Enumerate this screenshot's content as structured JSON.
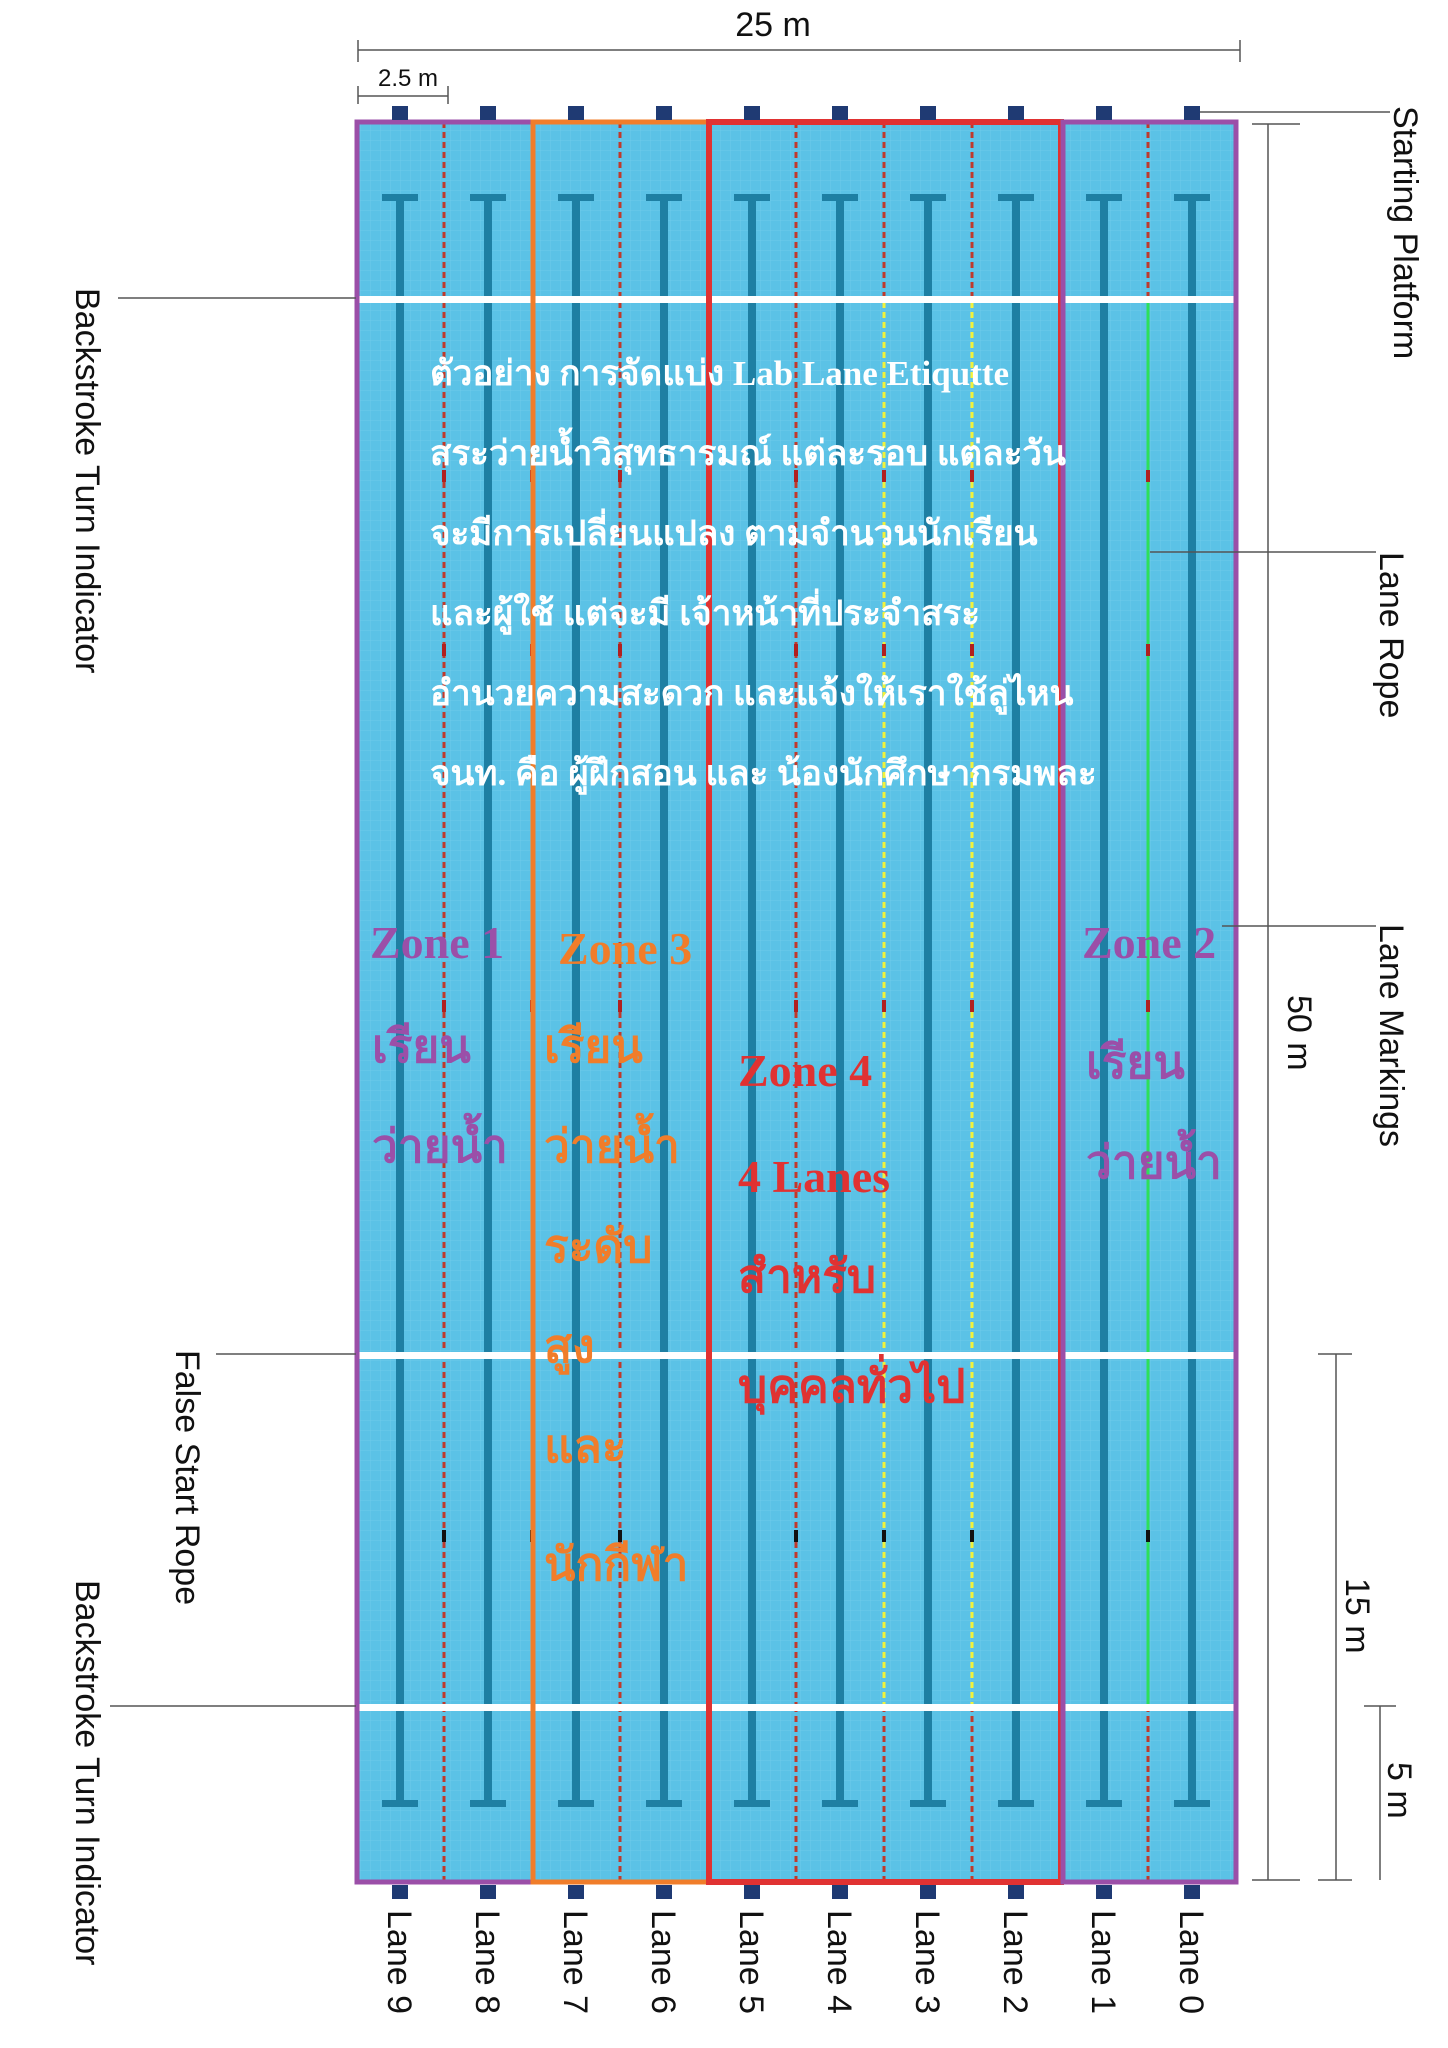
{
  "dimensions": {
    "pool_width": "25 m",
    "lane_width": "2.5 m",
    "pool_length": "50 m",
    "false_start_distance": "15 m",
    "backstroke_distance": "5 m"
  },
  "callouts": {
    "starting_platform": "Starting Platform",
    "lane_rope": "Lane Rope",
    "lane_markings": "Lane Markings",
    "backstroke_turn_indicator_top": "Backstroke Turn Indicator",
    "false_start_rope": "False Start Rope",
    "backstroke_turn_indicator_bottom": "Backstroke Turn Indicator"
  },
  "lanes": [
    "Lane 9",
    "Lane 8",
    "Lane 7",
    "Lane 6",
    "Lane 5",
    "Lane 4",
    "Lane 3",
    "Lane 2",
    "Lane 1",
    "Lane 0"
  ],
  "note_lines": [
    "ตัวอย่าง การจัดแบ่ง Lab Lane Etiqutte",
    "สระว่ายน้ำวิสุทธารมณ์ แต่ละรอบ แต่ละวัน",
    "จะมีการเปลี่ยนแปลง ตามจำนวนนักเรียน",
    "และผู้ใช้  แต่จะมี เจ้าหน้าที่ประจำสระ",
    "อำนวยความสะดวก และแจ้งให้เราใช้ลู่ไหน",
    "จนท. คือ ผู้ฝึกสอน และ น้องนักศึกษากรมพละ"
  ],
  "zones": {
    "zone1": {
      "title": "Zone 1",
      "lines": [
        "เรียน",
        "ว่ายน้ำ"
      ]
    },
    "zone3": {
      "title": "Zone 3",
      "lines": [
        "เรียน",
        "ว่ายน้ำ",
        "ระดับ",
        "สูง",
        "และ",
        "นักกีฬา"
      ]
    },
    "zone4": {
      "title": "Zone 4",
      "lines": [
        "4 Lanes",
        "สำหรับ",
        "บุคคลทั่วไป"
      ]
    },
    "zone2": {
      "title": "Zone 2",
      "lines": [
        "เรียน",
        "ว่ายน้ำ"
      ]
    }
  },
  "colors": {
    "water": "#5bc2e6",
    "lane_marking": "#1e7fa3",
    "zone1": "#9b4fa8",
    "zone2": "#9b4fa8",
    "zone3": "#f07d2a",
    "zone4": "#e03232",
    "platform": "#1f3a73",
    "rope_red": "#c0392b",
    "rope_green": "#2ee05a",
    "rope_blue": "#1b3fd8",
    "rope_yellow": "#f2f23a"
  }
}
